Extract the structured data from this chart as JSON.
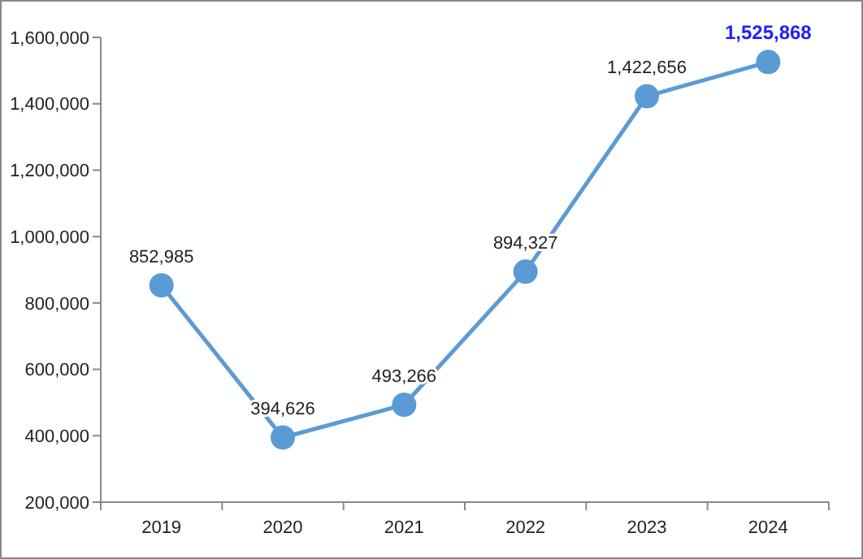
{
  "chart_data": {
    "type": "line",
    "categories": [
      "2019",
      "2020",
      "2021",
      "2022",
      "2023",
      "2024"
    ],
    "series": [
      {
        "color": "#5b9bd5",
        "values": [
          852985,
          394626,
          493266,
          894327,
          1422656,
          1525868
        ]
      }
    ],
    "ylim": [
      200000,
      1600000
    ],
    "yticks": [
      {
        "value": 200000,
        "label": "200,000"
      },
      {
        "value": 400000,
        "label": "400,000"
      },
      {
        "value": 600000,
        "label": "600,000"
      },
      {
        "value": 800000,
        "label": "800,000"
      },
      {
        "value": 1000000,
        "label": "1,000,000"
      },
      {
        "value": 1200000,
        "label": "1,200,000"
      },
      {
        "value": 1400000,
        "label": "1,400,000"
      },
      {
        "value": 1600000,
        "label": "1,600,000"
      }
    ],
    "value_labels": [
      "852,985",
      "394,626",
      "493,266",
      "894,327",
      "1,422,656",
      "1,525,868"
    ],
    "marker": "circle",
    "grid": false
  }
}
